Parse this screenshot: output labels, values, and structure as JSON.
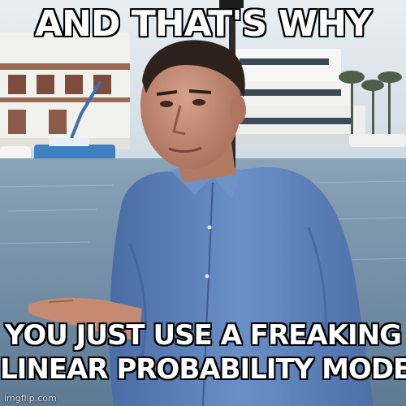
{
  "meme": {
    "top_text": "AND THAT'S WHY",
    "bottom_lines": [
      "YOU JUST USE A FREAKING",
      "LINEAR PROBABILITY MODEL"
    ],
    "watermark": "imgflip.com"
  },
  "colors": {
    "sky": "#d9e4ea",
    "water": "#6f8da6",
    "shirt": "#5b7fb8",
    "skin": "#c48a72",
    "caption_text": "#ffffff",
    "caption_outline": "#000000"
  }
}
